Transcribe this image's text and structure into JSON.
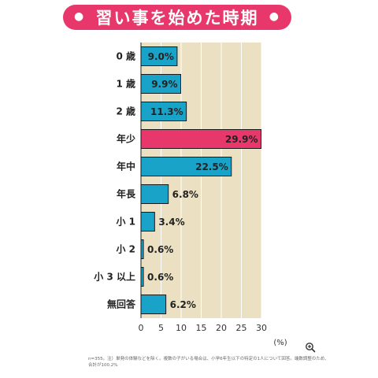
{
  "chart_data": {
    "type": "bar",
    "orientation": "horizontal",
    "title": "習い事を始めた時期",
    "categories": [
      "0 歳",
      "1 歳",
      "2 歳",
      "年少",
      "年中",
      "年長",
      "小 1",
      "小 2",
      "小 3 以上",
      "無回答"
    ],
    "values": [
      9.0,
      9.9,
      11.3,
      29.9,
      22.5,
      6.8,
      3.4,
      0.6,
      0.6,
      6.2
    ],
    "value_labels": [
      "9.0%",
      "9.9%",
      "11.3%",
      "29.9%",
      "22.5%",
      "6.8%",
      "3.4%",
      "0.6%",
      "0.6%",
      "6.2%"
    ],
    "highlight_index": 3,
    "xlim": [
      0,
      30
    ],
    "xticks": [
      "0",
      "5",
      "10",
      "15",
      "20",
      "25",
      "30"
    ],
    "xunit": "(%)",
    "grid": true
  },
  "colors": {
    "bar": "#1aa3c8",
    "highlight": "#e8386b",
    "plot_bg": "#ebe0c1",
    "grid": "#ffffff",
    "banner": "#e8386b"
  },
  "footnote": "n=355。注）単発の体験などを除く。複数の子がいる場合は、小学6年生以下の特定の1人について回答。端数調整のため、合計が100.2%",
  "icons": {
    "zoom": "zoom-in-icon"
  }
}
